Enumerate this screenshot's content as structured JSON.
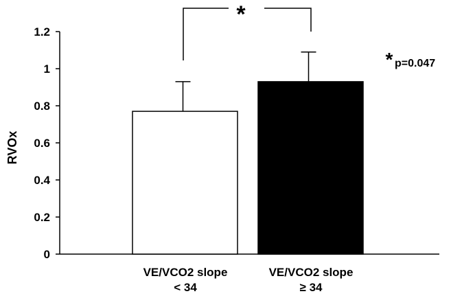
{
  "chart_data": {
    "type": "bar",
    "ylabel": "RVOx",
    "ylim": [
      0,
      1.2
    ],
    "yticks": [
      "0",
      "0.2",
      "0.4",
      "0.6",
      "0.8",
      "1",
      "1.2"
    ],
    "categories": [
      {
        "line1": "VE/VCO2 slope",
        "line2": "< 34"
      },
      {
        "line1": "VE/VCO2 slope",
        "line2": "≥ 34"
      }
    ],
    "values": [
      0.77,
      0.93
    ],
    "errors": [
      0.16,
      0.16
    ],
    "bar_colors": [
      "#ffffff",
      "#000000"
    ],
    "significance_mark": "*",
    "annotation": {
      "star": "*",
      "text": "p=0.047"
    },
    "grid": false
  }
}
